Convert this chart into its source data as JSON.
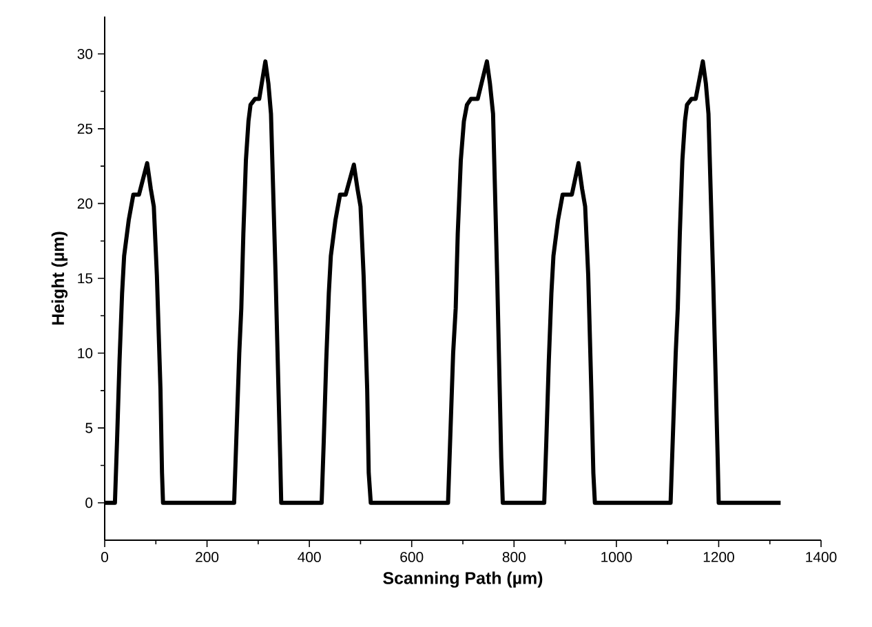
{
  "chart_data": {
    "type": "line",
    "xlabel": "Scanning Path (µm)",
    "ylabel": "Height (µm)",
    "xlim": [
      0,
      1400
    ],
    "ylim": [
      -2.5,
      32.5
    ],
    "xticks": [
      0,
      200,
      400,
      600,
      800,
      1000,
      1200,
      1400
    ],
    "yticks": [
      0,
      5,
      10,
      15,
      20,
      25,
      30
    ],
    "series": [
      {
        "color": "#000000",
        "x": [
          0,
          18,
          20,
          24,
          29,
          34,
          38,
          47,
          56,
          67,
          83,
          90,
          96,
          102,
          109,
          112,
          114,
          253,
          258,
          263,
          267,
          271,
          276,
          281,
          285,
          294,
          302,
          314,
          320,
          325,
          334,
          343,
          345,
          424,
          428,
          433,
          438,
          442,
          451,
          460,
          471,
          487,
          494,
          500,
          506,
          513,
          516,
          520,
          671,
          676,
          681,
          686,
          690,
          696,
          702,
          708,
          716,
          729,
          747,
          753,
          759,
          767,
          775,
          778,
          859,
          863,
          868,
          873,
          877,
          886,
          895,
          913,
          926,
          933,
          939,
          945,
          951,
          955,
          958,
          1106,
          1111,
          1116,
          1120,
          1124,
          1129,
          1134,
          1138,
          1147,
          1155,
          1169,
          1175,
          1180,
          1189,
          1198,
          1200,
          1321
        ],
        "values": [
          0,
          0,
          0,
          4,
          9.5,
          14,
          16.5,
          18.9,
          20.6,
          20.6,
          22.7,
          21,
          19.8,
          15.2,
          7.6,
          2,
          0,
          0,
          5,
          10,
          13,
          18,
          22.9,
          25.5,
          26.6,
          27,
          27,
          29.5,
          28,
          26,
          15.2,
          3,
          0,
          0,
          4,
          9.5,
          14,
          16.5,
          18.9,
          20.6,
          20.6,
          22.6,
          21,
          19.8,
          15.2,
          7.6,
          2,
          0,
          0,
          5,
          10,
          13,
          18,
          22.9,
          25.5,
          26.6,
          27,
          27,
          29.5,
          28,
          26,
          15.2,
          3,
          0,
          0,
          4,
          9.5,
          14,
          16.5,
          18.9,
          20.6,
          20.6,
          22.7,
          21,
          19.8,
          15.2,
          7.6,
          2,
          0,
          0,
          5,
          10,
          13,
          18,
          22.9,
          25.5,
          26.6,
          27,
          27,
          29.5,
          28,
          26,
          15.2,
          3,
          0,
          0
        ]
      }
    ]
  }
}
